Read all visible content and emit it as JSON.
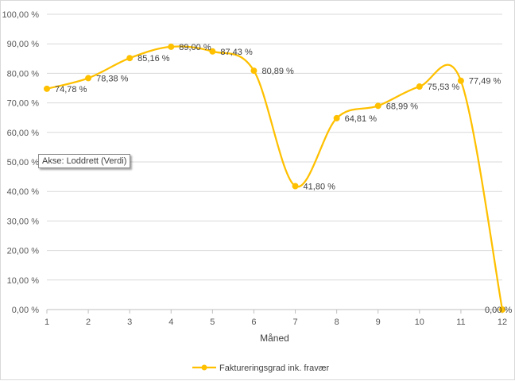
{
  "chart_data": {
    "type": "line",
    "smooth": true,
    "x": [
      1,
      2,
      3,
      4,
      5,
      6,
      7,
      8,
      9,
      10,
      11,
      12
    ],
    "series": [
      {
        "name": "Faktureringsgrad ink. fravær",
        "values": [
          74.78,
          78.38,
          85.16,
          89.0,
          87.43,
          80.89,
          41.8,
          64.81,
          68.99,
          75.53,
          77.49,
          0.0
        ],
        "data_labels": [
          "74,78 %",
          "78,38 %",
          "85,16 %",
          "89,00 %",
          "87,43 %",
          "80,89 %",
          "41,80 %",
          "64,81 %",
          "68,99 %",
          "75,53 %",
          "77,49 %",
          "0,00 %"
        ],
        "color": "#FFC000"
      }
    ],
    "xlabel": "Måned",
    "ylabel": "",
    "ylim": [
      0,
      100
    ],
    "yticks": [
      "0,00 %",
      "10,00 %",
      "20,00 %",
      "30,00 %",
      "40,00 %",
      "50,00 %",
      "60,00 %",
      "70,00 %",
      "80,00 %",
      "90,00 %",
      "100,00 %"
    ],
    "xticks": [
      "1",
      "2",
      "3",
      "4",
      "5",
      "6",
      "7",
      "8",
      "9",
      "10",
      "11",
      "12"
    ],
    "grid": true,
    "legend": "bottom",
    "gridline_color": "#d9d9d9"
  },
  "tooltip": {
    "text": "Akse: Loddrett (Verdi)"
  }
}
